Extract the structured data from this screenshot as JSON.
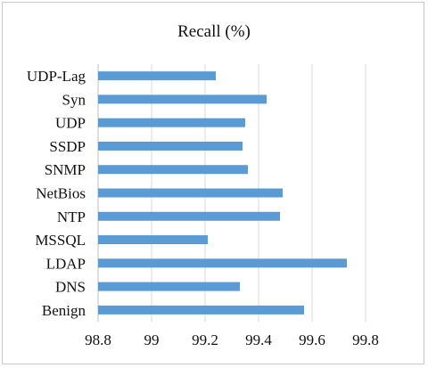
{
  "chart_data": {
    "type": "bar",
    "orientation": "horizontal",
    "title": "Recall (%)",
    "xlabel": "",
    "ylabel": "",
    "categories": [
      "UDP-Lag",
      "Syn",
      "UDP",
      "SSDP",
      "SNMP",
      "NetBios",
      "NTP",
      "MSSQL",
      "LDAP",
      "DNS",
      "Benign"
    ],
    "series": [
      {
        "values": [
          99.24,
          99.43,
          99.35,
          99.34,
          99.36,
          99.49,
          99.48,
          99.21,
          99.73,
          99.33,
          99.57
        ]
      }
    ],
    "xlim": [
      98.8,
      99.9
    ],
    "xticks": [
      "98.8",
      "99",
      "99.2",
      "99.4",
      "99.6",
      "99.8"
    ],
    "grid": "vertical",
    "legend": "none",
    "colors": {
      "bar": "#5b9bd5",
      "grid": "#d9d9d9"
    }
  }
}
